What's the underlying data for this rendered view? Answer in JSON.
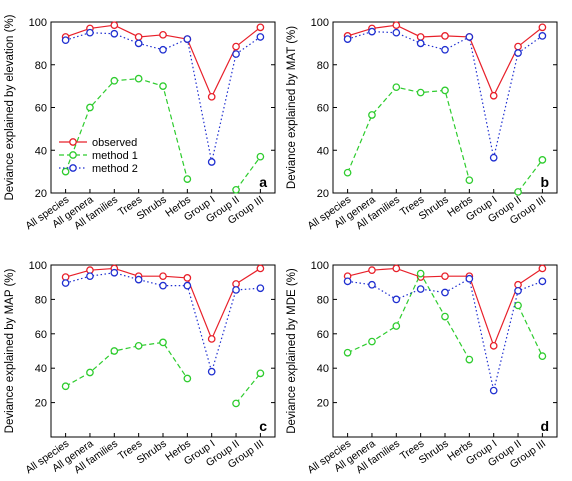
{
  "categories": [
    "All species",
    "All genera",
    "All families",
    "Trees",
    "Shrubs",
    "Herbs",
    "Group I",
    "Group II",
    "Group III"
  ],
  "legend": [
    "observed",
    "method 1",
    "method 2"
  ],
  "colors": {
    "observed": "#e8202a",
    "method1": "#2ecc2e",
    "method2": "#1f2fd0"
  },
  "chart_data": [
    {
      "type": "line",
      "panel_label": "a",
      "ylabel": "Deviance explained by elevation (%)",
      "ylim": [
        20,
        100
      ],
      "yticks": [
        20,
        40,
        60,
        80,
        100
      ],
      "legend_position": "center-left",
      "categories": [
        "All species",
        "All genera",
        "All families",
        "Trees",
        "Shrubs",
        "Herbs",
        "Group I",
        "Group II",
        "Group III"
      ],
      "series": [
        {
          "name": "observed",
          "values": [
            93,
            97,
            98.5,
            93,
            94,
            92,
            65,
            88.5,
            97.5
          ]
        },
        {
          "name": "method 1",
          "values": [
            30,
            60,
            72.5,
            73.5,
            70,
            26.5,
            null,
            21.5,
            37
          ]
        },
        {
          "name": "method 2",
          "values": [
            91.5,
            95,
            94.5,
            90,
            87,
            92,
            34.5,
            85,
            93
          ]
        }
      ]
    },
    {
      "type": "line",
      "panel_label": "b",
      "ylabel": "Deviance explained by MAT (%)",
      "ylim": [
        20,
        100
      ],
      "yticks": [
        20,
        40,
        60,
        80,
        100
      ],
      "categories": [
        "All species",
        "All genera",
        "All families",
        "Trees",
        "Shrubs",
        "Herbs",
        "Group I",
        "Group II",
        "Group III"
      ],
      "series": [
        {
          "values": [
            93.5,
            97,
            98.5,
            93,
            93.5,
            93,
            65.5,
            88.5,
            97.5
          ]
        },
        {
          "values": [
            29.5,
            56.5,
            69.5,
            67,
            68,
            26,
            null,
            20.5,
            35.5
          ]
        },
        {
          "values": [
            92,
            95.5,
            95,
            90,
            87,
            93,
            36.5,
            85.5,
            93.5
          ]
        }
      ]
    },
    {
      "type": "line",
      "panel_label": "c",
      "ylabel": "Deviance explained by MAP (%)",
      "ylim": [
        0,
        100
      ],
      "yticks": [
        20,
        40,
        60,
        80,
        100
      ],
      "categories": [
        "All species",
        "All genera",
        "All families",
        "Trees",
        "Shrubs",
        "Herbs",
        "Group I",
        "Group II",
        "Group III"
      ],
      "series": [
        {
          "values": [
            93,
            97,
            98,
            93.5,
            93.5,
            92.5,
            57,
            89,
            98
          ]
        },
        {
          "values": [
            29.5,
            37.5,
            50,
            53,
            55,
            34,
            null,
            19.5,
            37
          ]
        },
        {
          "values": [
            89.5,
            93.5,
            95.5,
            91.5,
            88,
            88,
            38,
            85.5,
            86.5
          ]
        }
      ]
    },
    {
      "type": "line",
      "panel_label": "d",
      "ylabel": "Deviance explained by MDE (%)",
      "ylim": [
        0,
        100
      ],
      "yticks": [
        20,
        40,
        60,
        80,
        100
      ],
      "categories": [
        "All species",
        "All genera",
        "All families",
        "Trees",
        "Shrubs",
        "Herbs",
        "Group I",
        "Group II",
        "Group III"
      ],
      "series": [
        {
          "values": [
            93.5,
            97,
            98,
            93,
            93.5,
            93.5,
            53,
            88.5,
            98
          ]
        },
        {
          "values": [
            49,
            55.5,
            64.5,
            95,
            70,
            45,
            null,
            76.5,
            47
          ]
        },
        {
          "values": [
            90.5,
            88.5,
            80,
            86,
            84,
            92,
            27,
            85,
            90.5
          ]
        }
      ]
    }
  ]
}
